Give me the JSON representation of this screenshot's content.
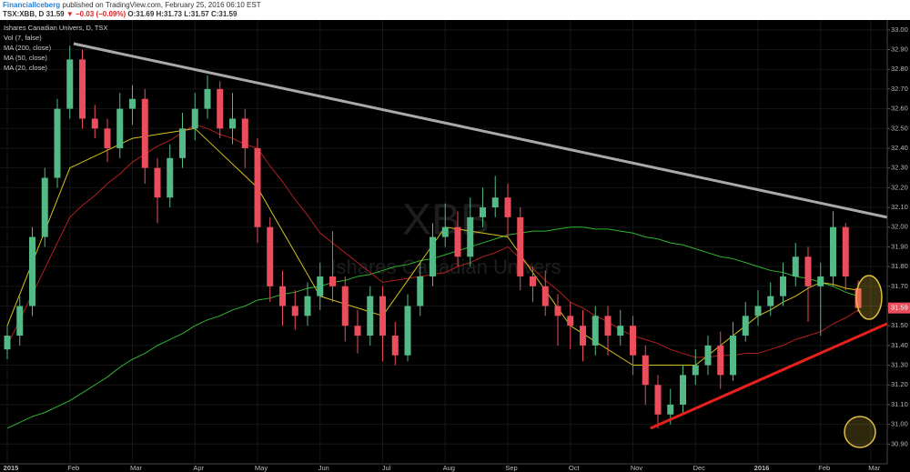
{
  "header": {
    "author": "FinancialIceberg",
    "published": "published on TradingView.com, February 25, 2016 06:10 EST",
    "symbol": "TSX:XBB, D",
    "last": "31.59",
    "change": "▼ −0.03 (−0.09%)",
    "ohlc": "O:31.69 H:31.73 L:31.57 C:31.59"
  },
  "chart_data": {
    "type": "candlestick",
    "title": "Ishares Canadian Univers, D, TSX",
    "indicators": [
      "Vol (7, false)"
    ],
    "watermark": [
      "XBB",
      "Ishares Canadian Univers"
    ],
    "categories": [
      "2015",
      null,
      null,
      null,
      null,
      "Feb",
      null,
      null,
      null,
      null,
      "Mar",
      null,
      null,
      null,
      null,
      "Apr",
      null,
      null,
      null,
      null,
      "May",
      null,
      null,
      null,
      null,
      "Jun",
      null,
      null,
      null,
      null,
      "Jul",
      null,
      null,
      null,
      null,
      "Aug",
      null,
      null,
      null,
      null,
      "Sep",
      null,
      null,
      null,
      null,
      "Oct",
      null,
      null,
      null,
      null,
      "Nov",
      null,
      null,
      null,
      null,
      "Dec",
      null,
      null,
      null,
      null,
      "2016",
      null,
      null,
      null,
      null,
      "Feb",
      null,
      null,
      null,
      "Mar"
    ],
    "open": [
      31.38,
      31.45,
      31.6,
      31.95,
      32.25,
      32.6,
      32.85,
      32.55,
      32.5,
      32.4,
      32.6,
      32.65,
      32.3,
      32.15,
      32.35,
      32.5,
      32.6,
      32.7,
      32.5,
      32.55,
      32.4,
      32.0,
      31.7,
      31.6,
      31.55,
      31.65,
      31.75,
      31.7,
      31.5,
      31.45,
      31.65,
      31.45,
      31.35,
      31.6,
      31.75,
      31.95,
      32.0,
      31.85,
      32.05,
      32.1,
      32.15,
      32.05,
      31.75,
      31.7,
      31.6,
      31.55,
      31.5,
      31.4,
      31.55,
      31.45,
      31.5,
      31.35,
      31.2,
      31.05,
      31.1,
      31.25,
      31.3,
      31.4,
      31.25,
      31.45,
      31.55,
      31.6,
      31.65,
      31.75,
      31.85,
      31.7,
      31.75,
      32.0,
      31.69,
      null
    ],
    "high": [
      31.5,
      31.65,
      32.0,
      32.3,
      32.65,
      32.92,
      32.9,
      32.62,
      32.55,
      32.68,
      32.72,
      32.7,
      32.35,
      32.42,
      32.58,
      32.68,
      32.77,
      32.74,
      32.68,
      32.6,
      32.45,
      32.05,
      31.78,
      31.68,
      31.72,
      31.82,
      31.98,
      31.75,
      31.58,
      31.7,
      31.7,
      31.52,
      31.66,
      31.82,
      32.02,
      32.12,
      32.08,
      32.15,
      32.2,
      32.26,
      32.22,
      32.1,
      31.8,
      31.78,
      31.66,
      31.62,
      31.58,
      31.6,
      31.6,
      31.58,
      31.55,
      31.4,
      31.25,
      31.18,
      31.3,
      31.38,
      31.45,
      31.47,
      31.52,
      31.62,
      31.68,
      31.72,
      31.82,
      31.92,
      31.9,
      31.82,
      32.08,
      32.02,
      31.73,
      null
    ],
    "low": [
      31.33,
      31.4,
      31.55,
      31.9,
      32.2,
      32.55,
      32.5,
      32.45,
      32.33,
      32.35,
      32.52,
      32.22,
      32.02,
      32.1,
      32.3,
      32.44,
      32.55,
      32.45,
      32.42,
      32.3,
      31.92,
      31.62,
      31.5,
      31.48,
      31.5,
      31.58,
      31.62,
      31.42,
      31.36,
      31.4,
      31.32,
      31.3,
      31.32,
      31.55,
      31.7,
      31.9,
      31.8,
      31.8,
      32.0,
      32.05,
      31.95,
      31.68,
      31.62,
      31.55,
      31.4,
      31.38,
      31.32,
      31.35,
      31.35,
      31.4,
      31.25,
      31.1,
      30.98,
      31.0,
      31.05,
      31.2,
      31.25,
      31.18,
      31.22,
      31.42,
      31.5,
      31.55,
      31.6,
      31.7,
      31.52,
      31.45,
      31.7,
      31.68,
      31.57,
      null
    ],
    "close": [
      31.45,
      31.6,
      31.95,
      32.25,
      32.6,
      32.85,
      32.55,
      32.5,
      32.4,
      32.6,
      32.65,
      32.3,
      32.15,
      32.35,
      32.5,
      32.6,
      32.7,
      32.5,
      32.55,
      32.4,
      32.0,
      31.7,
      31.6,
      31.55,
      31.65,
      31.75,
      31.7,
      31.5,
      31.45,
      31.65,
      31.45,
      31.35,
      31.6,
      31.75,
      31.95,
      32.0,
      31.85,
      32.05,
      32.1,
      32.15,
      32.05,
      31.75,
      31.7,
      31.6,
      31.55,
      31.5,
      31.4,
      31.55,
      31.45,
      31.5,
      31.35,
      31.2,
      31.05,
      31.1,
      31.25,
      31.3,
      31.4,
      31.25,
      31.45,
      31.55,
      31.6,
      31.65,
      31.75,
      31.85,
      31.7,
      31.75,
      32.0,
      31.75,
      31.59,
      null
    ],
    "up_color": "#53b987",
    "down_color": "#eb4d5c",
    "series": [
      {
        "name": "MA (200, close)",
        "color": "#2fb52f",
        "values": [
          30.98,
          31.01,
          31.04,
          31.06,
          31.09,
          31.12,
          31.16,
          31.2,
          31.24,
          31.29,
          31.33,
          31.36,
          31.4,
          31.43,
          31.46,
          31.5,
          31.53,
          31.55,
          31.58,
          31.6,
          31.63,
          31.64,
          31.66,
          31.67,
          31.69,
          31.7,
          31.72,
          31.73,
          31.75,
          31.76,
          31.78,
          31.8,
          31.81,
          31.83,
          31.84,
          31.86,
          31.88,
          31.9,
          31.92,
          31.94,
          31.96,
          31.97,
          31.98,
          31.98,
          31.99,
          32.0,
          32.0,
          31.99,
          31.99,
          31.98,
          31.97,
          31.95,
          31.94,
          31.92,
          31.91,
          31.89,
          31.87,
          31.85,
          31.84,
          31.82,
          31.8,
          31.78,
          31.77,
          31.75,
          31.74,
          31.72,
          31.7,
          31.67,
          31.65,
          null
        ]
      },
      {
        "name": "MA (50, close)",
        "color": "#b0201f",
        "values": [
          31.4,
          31.53,
          31.66,
          31.79,
          31.92,
          32.05,
          32.11,
          32.16,
          32.22,
          32.27,
          32.33,
          32.37,
          32.41,
          32.44,
          32.48,
          32.52,
          32.5,
          32.47,
          32.45,
          32.42,
          32.4,
          32.31,
          32.23,
          32.14,
          32.06,
          31.97,
          31.92,
          31.87,
          31.82,
          31.77,
          31.72,
          31.73,
          31.74,
          31.75,
          31.76,
          31.77,
          31.8,
          31.82,
          31.85,
          31.87,
          31.9,
          31.84,
          31.79,
          31.73,
          31.68,
          31.62,
          31.59,
          31.55,
          31.52,
          31.48,
          31.45,
          31.43,
          31.41,
          31.38,
          31.36,
          31.34,
          31.34,
          31.35,
          31.35,
          31.36,
          31.36,
          31.38,
          31.4,
          31.43,
          31.45,
          31.47,
          31.51,
          31.54,
          31.58,
          null
        ]
      },
      {
        "name": "MA (20, close)",
        "color": "#d6c21b",
        "values": [
          31.5,
          31.66,
          31.82,
          31.98,
          32.14,
          32.3,
          32.33,
          32.36,
          32.39,
          32.42,
          32.45,
          32.46,
          32.47,
          32.48,
          32.49,
          32.5,
          32.44,
          32.38,
          32.32,
          32.26,
          32.2,
          32.09,
          31.98,
          31.87,
          31.76,
          31.65,
          31.63,
          31.61,
          31.59,
          31.57,
          31.55,
          31.64,
          31.73,
          31.82,
          31.91,
          32.0,
          31.99,
          31.98,
          31.97,
          31.96,
          31.95,
          31.86,
          31.77,
          31.68,
          31.59,
          31.5,
          31.46,
          31.42,
          31.38,
          31.34,
          31.3,
          31.3,
          31.3,
          31.3,
          31.3,
          31.3,
          31.35,
          31.4,
          31.45,
          31.5,
          31.55,
          31.58,
          31.62,
          31.65,
          31.69,
          31.72,
          31.71,
          31.69,
          31.68,
          null
        ]
      }
    ],
    "trend_lines": [
      {
        "color": "#a9a9a9",
        "x": [
          5.3,
          70.3
        ],
        "y": [
          32.93,
          32.05
        ]
      },
      {
        "color": "#e8201c",
        "x": [
          51.4,
          70.3
        ],
        "y": [
          30.98,
          31.51
        ]
      }
    ],
    "ylim": [
      30.8,
      33.05
    ],
    "yticks": [
      {
        "value": 30.9,
        "label": "30.90"
      },
      {
        "value": 31.0,
        "label": "31.00"
      },
      {
        "value": 31.1,
        "label": "31.10"
      },
      {
        "value": 31.2,
        "label": "31.20"
      },
      {
        "value": 31.3,
        "label": "31.30"
      },
      {
        "value": 31.4,
        "label": "31.40"
      },
      {
        "value": 31.5,
        "label": "31.50"
      },
      {
        "value": 31.6,
        "label": "31.60"
      },
      {
        "value": 31.7,
        "label": "31.70"
      },
      {
        "value": 31.8,
        "label": "31.80"
      },
      {
        "value": 31.9,
        "label": "31.90"
      },
      {
        "value": 32.0,
        "label": "32.00"
      },
      {
        "value": 32.1,
        "label": "32.10"
      },
      {
        "value": 32.2,
        "label": "32.20"
      },
      {
        "value": 32.3,
        "label": "32.30"
      },
      {
        "value": 32.4,
        "label": "32.40"
      },
      {
        "value": 32.5,
        "label": "32.50"
      },
      {
        "value": 32.6,
        "label": "32.60"
      },
      {
        "value": 32.7,
        "label": "32.70"
      },
      {
        "value": 32.8,
        "label": "32.80"
      },
      {
        "value": 32.9,
        "label": "32.90"
      },
      {
        "value": 33.0,
        "label": "33.00"
      }
    ],
    "grid": true
  }
}
